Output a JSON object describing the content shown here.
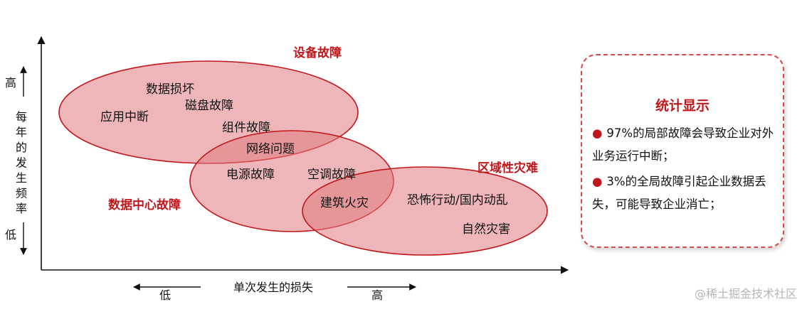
{
  "diagram": {
    "y_axis": {
      "label": "每年的发生频率",
      "high": "高",
      "low": "低"
    },
    "x_axis": {
      "label": "单次发生的损失",
      "low": "低",
      "high": "高"
    },
    "categories": [
      {
        "name": "设备故障",
        "items": [
          "数据损坏",
          "磁盘故障",
          "应用中断",
          "组件故障"
        ]
      },
      {
        "name": "数据中心故障",
        "items": [
          "网络问题",
          "电源故障",
          "空调故障"
        ]
      },
      {
        "name": "区域性灾难",
        "items": [
          "建筑火灾",
          "恐怖行动/国内动乱",
          "自然灾害"
        ]
      }
    ],
    "colors": {
      "ellipse_fill": "#e07a7d",
      "ellipse_stroke": "#c0171c",
      "category_text": "#c0171c",
      "axis": "#111111"
    }
  },
  "stats": {
    "title": "统计显示",
    "bullets": [
      "97%的局部故障会导致企业对外业务运行中断；",
      "3%的全局故障引起企业数据丢失，可能导致企业消亡；"
    ]
  },
  "watermark": "@稀土掘金技术社区"
}
